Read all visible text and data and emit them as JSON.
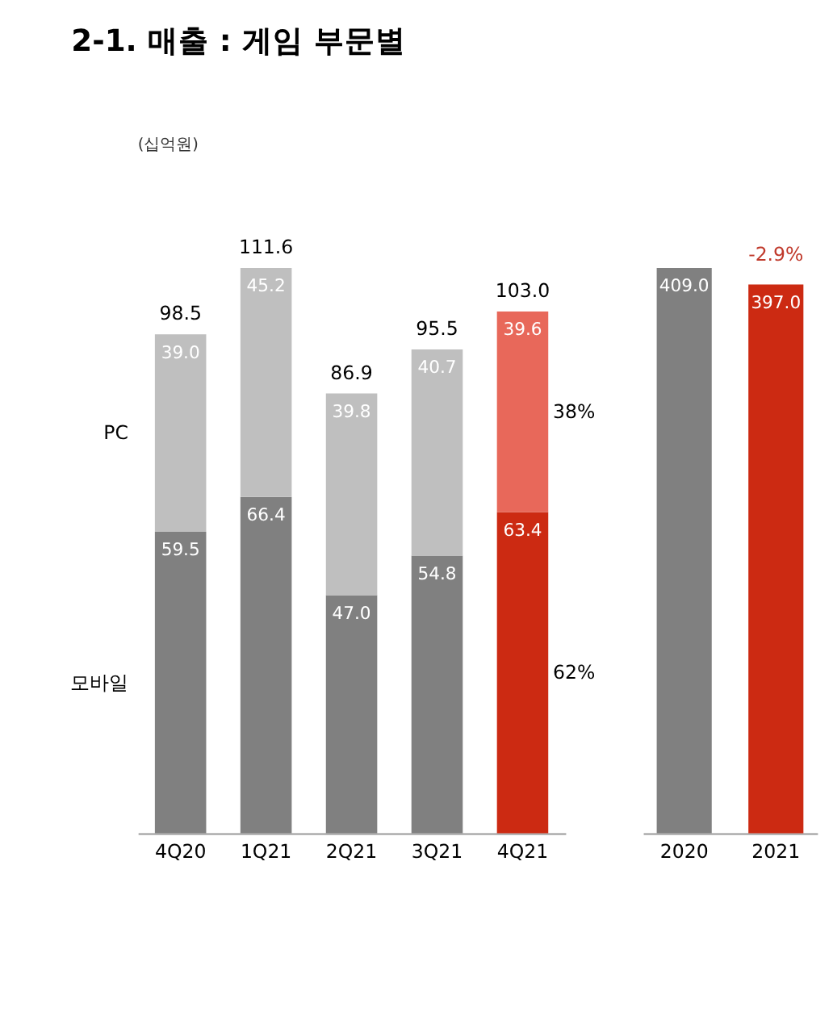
{
  "chart_data": [
    {
      "type": "bar",
      "title": "2-1. 매출 : 게임 부문별",
      "ylabel": "(십억원)",
      "categories": [
        "4Q20",
        "1Q21",
        "2Q21",
        "3Q21",
        "4Q21"
      ],
      "stacked": true,
      "series": [
        {
          "name": "모바일",
          "colors": [
            "#808080",
            "#808080",
            "#808080",
            "#808080",
            "#cc2a12"
          ],
          "values": [
            59.5,
            66.4,
            47.0,
            54.8,
            63.4
          ],
          "value_labels": [
            "59.5",
            "66.4",
            "47.0",
            "54.8",
            "63.4"
          ]
        },
        {
          "name": "PC",
          "colors": [
            "#bfbfbf",
            "#bfbfbf",
            "#bfbfbf",
            "#bfbfbf",
            "#e8685a"
          ],
          "values": [
            39.0,
            45.2,
            39.8,
            40.7,
            39.6
          ],
          "value_labels": [
            "39.0",
            "45.2",
            "39.8",
            "40.7",
            "39.6"
          ]
        }
      ],
      "totals": [
        "98.5",
        "111.6",
        "86.9",
        "95.5",
        "103.0"
      ],
      "annotations": [
        "62%",
        "38%"
      ],
      "tick_labels": "x"
    },
    {
      "type": "bar",
      "categories": [
        "2020",
        "2021"
      ],
      "values": [
        409.0,
        397.0
      ],
      "value_labels": [
        "409.0",
        "397.0"
      ],
      "colors": [
        "#808080",
        "#cc2a12"
      ],
      "annotations": [
        {
          "text": "-2.9%",
          "x": "2021",
          "y": 397.0
        }
      ],
      "tick_labels": "x"
    }
  ]
}
